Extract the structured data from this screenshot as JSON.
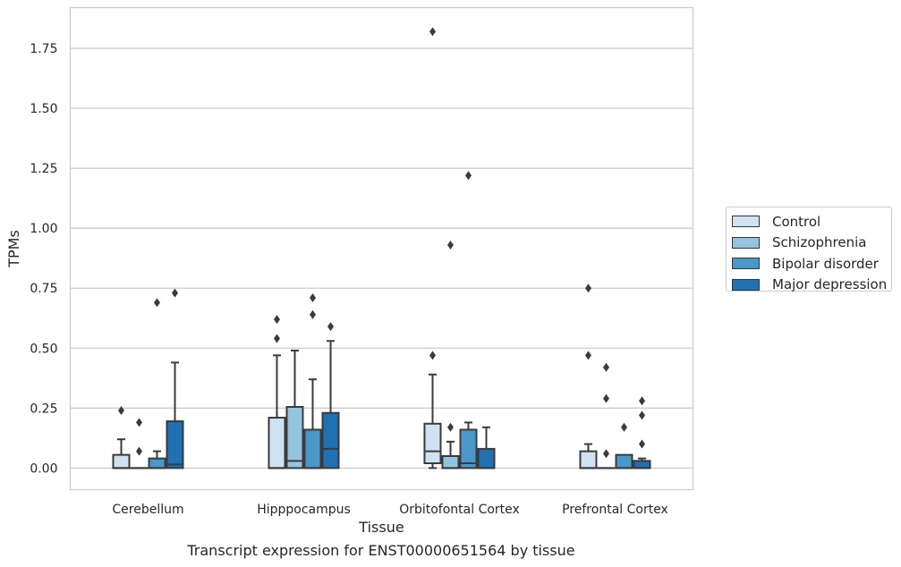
{
  "caption": "Transcript expression for ENST00000651564 by tissue",
  "chart_data": {
    "type": "boxplot",
    "title": "",
    "xlabel": "Tissue",
    "ylabel": "TPMs",
    "ylim": [
      -0.09,
      1.92
    ],
    "yticks": [
      "0.00",
      "0.25",
      "0.50",
      "0.75",
      "1.00",
      "1.25",
      "1.50",
      "1.75"
    ],
    "grid": "horizontal",
    "legend_position": "outside-right",
    "categories": [
      "Cerebellum",
      "Hipppocampus",
      "Orbitofontal Cortex",
      "Prefrontal Cortex"
    ],
    "series": [
      {
        "name": "Control",
        "color": "#d0e1f2",
        "boxes": [
          {
            "min": 0.0,
            "q1": 0.0,
            "median": 0.0,
            "q3": 0.055,
            "max": 0.12,
            "outliers": [
              0.24
            ]
          },
          {
            "min": 0.0,
            "q1": 0.0,
            "median": 0.0,
            "q3": 0.21,
            "max": 0.47,
            "outliers": [
              0.54,
              0.62
            ]
          },
          {
            "min": 0.0,
            "q1": 0.02,
            "median": 0.07,
            "q3": 0.185,
            "max": 0.39,
            "outliers": [
              0.47,
              1.82
            ]
          },
          {
            "min": 0.0,
            "q1": 0.0,
            "median": 0.0,
            "q3": 0.07,
            "max": 0.1,
            "outliers": [
              0.47,
              0.75
            ]
          }
        ]
      },
      {
        "name": "Schizophrenia",
        "color": "#94c4df",
        "boxes": [
          {
            "min": 0.0,
            "q1": 0.0,
            "median": 0.0,
            "q3": 0.0,
            "max": 0.0,
            "outliers": [
              0.07,
              0.19
            ]
          },
          {
            "min": 0.0,
            "q1": 0.0,
            "median": 0.03,
            "q3": 0.255,
            "max": 0.49,
            "outliers": []
          },
          {
            "min": 0.0,
            "q1": 0.0,
            "median": 0.0,
            "q3": 0.05,
            "max": 0.11,
            "outliers": [
              0.17,
              0.93
            ]
          },
          {
            "min": 0.0,
            "q1": 0.0,
            "median": 0.0,
            "q3": 0.0,
            "max": 0.0,
            "outliers": [
              0.06,
              0.29,
              0.42
            ]
          }
        ]
      },
      {
        "name": "Bipolar disorder",
        "color": "#4a98c9",
        "boxes": [
          {
            "min": 0.0,
            "q1": 0.0,
            "median": 0.0,
            "q3": 0.04,
            "max": 0.07,
            "outliers": [
              0.69
            ]
          },
          {
            "min": 0.0,
            "q1": 0.0,
            "median": 0.0,
            "q3": 0.16,
            "max": 0.37,
            "outliers": [
              0.64,
              0.71
            ]
          },
          {
            "min": 0.0,
            "q1": 0.0,
            "median": 0.02,
            "q3": 0.16,
            "max": 0.19,
            "outliers": [
              1.22
            ]
          },
          {
            "min": 0.0,
            "q1": 0.0,
            "median": 0.0,
            "q3": 0.055,
            "max": 0.055,
            "outliers": [
              0.17
            ]
          }
        ]
      },
      {
        "name": "Major depression",
        "color": "#2070b4",
        "boxes": [
          {
            "min": 0.0,
            "q1": 0.0,
            "median": 0.015,
            "q3": 0.195,
            "max": 0.44,
            "outliers": [
              0.73
            ]
          },
          {
            "min": 0.0,
            "q1": 0.0,
            "median": 0.08,
            "q3": 0.23,
            "max": 0.53,
            "outliers": [
              0.59
            ]
          },
          {
            "min": 0.0,
            "q1": 0.0,
            "median": 0.0,
            "q3": 0.08,
            "max": 0.17,
            "outliers": []
          },
          {
            "min": 0.0,
            "q1": 0.0,
            "median": 0.0,
            "q3": 0.03,
            "max": 0.04,
            "outliers": [
              0.1,
              0.22,
              0.28
            ]
          }
        ]
      }
    ]
  }
}
